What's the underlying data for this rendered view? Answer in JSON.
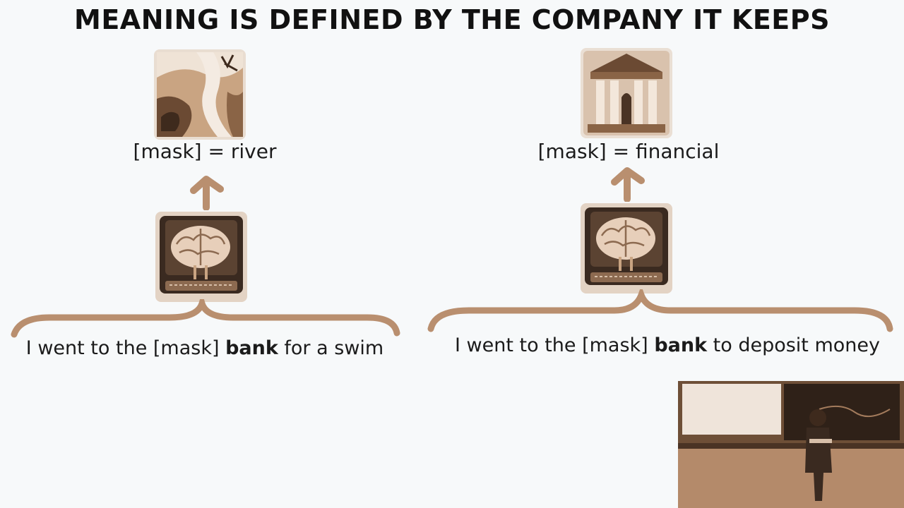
{
  "slide": {
    "title": "MEANING IS DEFINED BY THE COMPANY IT KEEPS"
  },
  "examples": [
    {
      "mask_label": "[mask] = river",
      "sentence_before": "I went to the [mask] ",
      "sentence_bold": "bank",
      "sentence_after": " for a swim",
      "image_icon": "river-landscape-icon",
      "model_icon": "brain-computer-icon"
    },
    {
      "mask_label": "[mask] = financial",
      "sentence_before": "I went to the [mask] ",
      "sentence_bold": "bank",
      "sentence_after": " to deposit money",
      "image_icon": "bank-building-icon",
      "model_icon": "brain-computer-icon"
    }
  ],
  "colors": {
    "background": "#f7f9fa",
    "accent_brown": "#b98f6f",
    "text": "#1b1b1b"
  }
}
